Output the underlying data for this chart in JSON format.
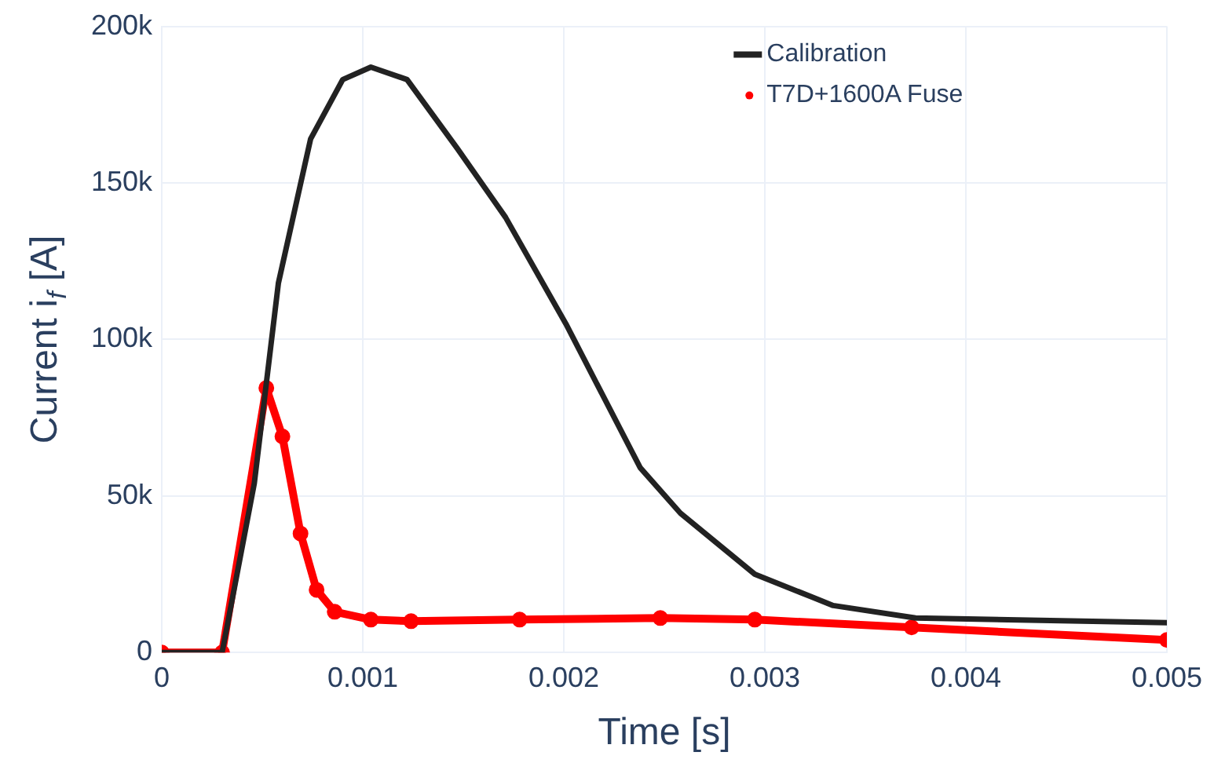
{
  "chart_data": {
    "type": "line",
    "xlabel": "Time [s]",
    "ylabel": "Current i$_{f}$ [A]",
    "xlim": [
      0,
      0.005
    ],
    "xticks": [
      0,
      0.001,
      0.002,
      0.003,
      0.004,
      0.005
    ],
    "ylim": [
      0,
      200000
    ],
    "yticks": [
      0,
      {
        "value": 50000,
        "label": "50k"
      },
      {
        "value": 100000,
        "label": "100k"
      },
      {
        "value": 150000,
        "label": "150k"
      },
      {
        "value": 200000,
        "label": "200k"
      }
    ],
    "grid": true,
    "legend": "top right",
    "series": [
      {
        "name": "Calibration",
        "color": "#222222",
        "marker": "none",
        "x": [
          0,
          0.0003,
          0.00046,
          0.00058,
          0.00074,
          0.0009,
          0.00104,
          0.00122,
          0.00147,
          0.00171,
          0.00201,
          0.00238,
          0.00258,
          0.00295,
          0.00334,
          0.00375,
          0.005
        ],
        "values": [
          0,
          0,
          54000,
          118000,
          164000,
          183000,
          187000,
          183000,
          161000,
          139000,
          105000,
          59000,
          44500,
          25000,
          15000,
          11000,
          9500
        ]
      },
      {
        "name": "T7D+1600A Fuse",
        "color": "#ff0000",
        "marker": "circle",
        "x": [
          0,
          0.0003,
          0.00052,
          0.0006,
          0.00069,
          0.00077,
          0.00086,
          0.00104,
          0.00124,
          0.00178,
          0.00248,
          0.00295,
          0.00373,
          0.005
        ],
        "values": [
          0,
          0,
          84500,
          69000,
          38000,
          20000,
          13000,
          10500,
          10000,
          10500,
          11000,
          10500,
          8000,
          4000
        ]
      }
    ]
  }
}
